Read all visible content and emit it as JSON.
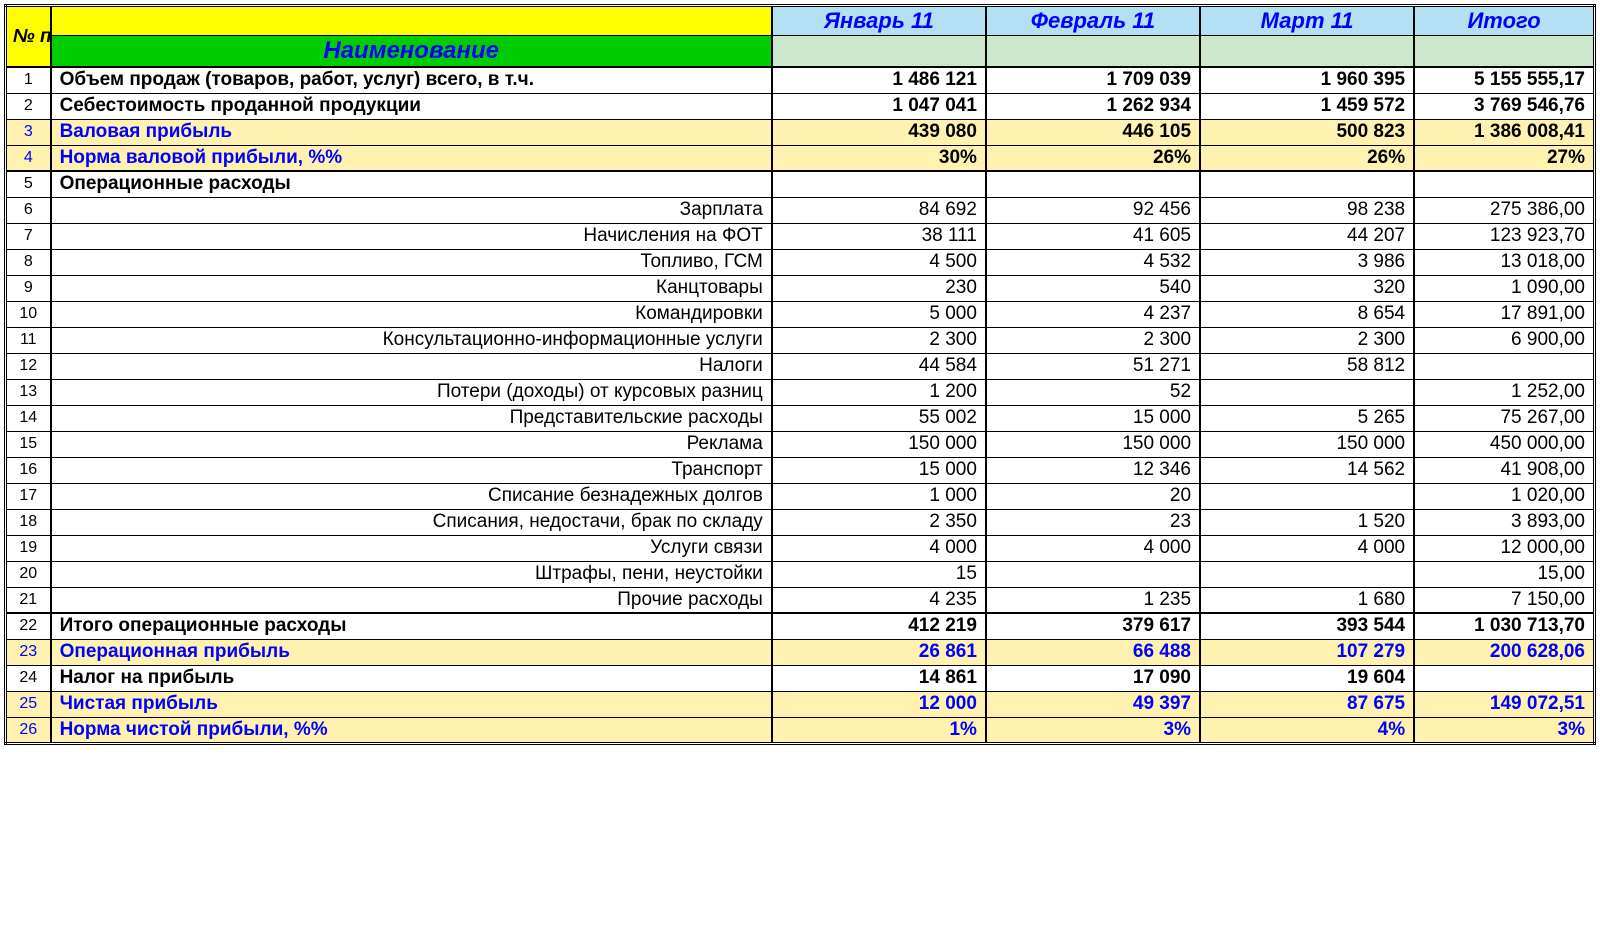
{
  "header": {
    "num_label": "№ п/п",
    "name_label": "Наименование",
    "months": [
      "Январь 11",
      "Февраль 11",
      "Март 11"
    ],
    "total_label": "Итого"
  },
  "colors": {
    "yellow_header": "#ffff00",
    "green_header": "#00cc00",
    "lightblue_header": "#b3e0f2",
    "lightgreen_sub": "#cce8cc",
    "highlight": "#fff2b0",
    "blue_text": "#0000ff"
  },
  "rows": [
    {
      "n": "1",
      "name": "Объем продаж (товаров, работ, услуг) всего,  в т.ч.",
      "align": "left",
      "bold": true,
      "v": [
        "1 486 121",
        "1 709 039",
        "1 960 395",
        "5 155 555,17"
      ],
      "thickTop": true
    },
    {
      "n": "2",
      "name": "Себестоимость проданной продукции",
      "align": "left",
      "bold": true,
      "v": [
        "1 047 041",
        "1 262 934",
        "1 459 572",
        "3 769 546,76"
      ]
    },
    {
      "n": "3",
      "name": "Валовая прибыль",
      "align": "left",
      "bold": true,
      "hl": true,
      "blue": true,
      "v": [
        "439 080",
        "446 105",
        "500 823",
        "1 386 008,41"
      ],
      "valBlack": true
    },
    {
      "n": "4",
      "name": "Норма валовой прибыли, %%",
      "align": "left",
      "bold": true,
      "hl": true,
      "blue": true,
      "v": [
        "30%",
        "26%",
        "26%",
        "27%"
      ],
      "valBlack": true
    },
    {
      "n": "5",
      "name": "Операционные расходы",
      "align": "left",
      "bold": true,
      "v": [
        "",
        "",
        "",
        ""
      ],
      "thickTop": true
    },
    {
      "n": "6",
      "name": "Зарплата",
      "align": "right",
      "v": [
        "84 692",
        "92 456",
        "98 238",
        "275 386,00"
      ]
    },
    {
      "n": "7",
      "name": "Начисления на ФОТ",
      "align": "right",
      "v": [
        "38 111",
        "41 605",
        "44 207",
        "123 923,70"
      ]
    },
    {
      "n": "8",
      "name": "Топливо, ГСМ",
      "align": "right",
      "v": [
        "4 500",
        "4 532",
        "3 986",
        "13 018,00"
      ]
    },
    {
      "n": "9",
      "name": "Канцтовары",
      "align": "right",
      "v": [
        "230",
        "540",
        "320",
        "1 090,00"
      ]
    },
    {
      "n": "10",
      "name": "Командировки",
      "align": "right",
      "v": [
        "5 000",
        "4 237",
        "8 654",
        "17 891,00"
      ]
    },
    {
      "n": "11",
      "name": "Консультационно-информационные услуги",
      "align": "right",
      "v": [
        "2 300",
        "2 300",
        "2 300",
        "6 900,00"
      ]
    },
    {
      "n": "12",
      "name": "Налоги",
      "align": "right",
      "v": [
        "44 584",
        "51 271",
        "58 812",
        ""
      ]
    },
    {
      "n": "13",
      "name": "Потери (доходы) от курсовых разниц",
      "align": "right",
      "v": [
        "1 200",
        "52",
        "",
        "1 252,00"
      ]
    },
    {
      "n": "14",
      "name": "Представительские расходы",
      "align": "right",
      "v": [
        "55 002",
        "15 000",
        "5 265",
        "75 267,00"
      ]
    },
    {
      "n": "15",
      "name": "Реклама",
      "align": "right",
      "v": [
        "150 000",
        "150 000",
        "150 000",
        "450 000,00"
      ]
    },
    {
      "n": "16",
      "name": "Транспорт",
      "align": "right",
      "v": [
        "15 000",
        "12 346",
        "14 562",
        "41 908,00"
      ]
    },
    {
      "n": "17",
      "name": "Списание безнадежных долгов",
      "align": "right",
      "v": [
        "1 000",
        "20",
        "",
        "1 020,00"
      ]
    },
    {
      "n": "18",
      "name": "Списания, недостачи, брак по складу",
      "align": "right",
      "v": [
        "2 350",
        "23",
        "1 520",
        "3 893,00"
      ]
    },
    {
      "n": "19",
      "name": "Услуги связи",
      "align": "right",
      "v": [
        "4 000",
        "4 000",
        "4 000",
        "12 000,00"
      ]
    },
    {
      "n": "20",
      "name": "Штрафы, пени, неустойки",
      "align": "right",
      "v": [
        "15",
        "",
        "",
        "15,00"
      ]
    },
    {
      "n": "21",
      "name": "Прочие расходы",
      "align": "right",
      "v": [
        "4 235",
        "1 235",
        "1 680",
        "7 150,00"
      ]
    },
    {
      "n": "22",
      "name": "Итого операционные расходы",
      "align": "left",
      "bold": true,
      "v": [
        "412 219",
        "379 617",
        "393 544",
        "1 030 713,70"
      ],
      "thickTop": true
    },
    {
      "n": "23",
      "name": "Операционная прибыль",
      "align": "left",
      "bold": true,
      "hl": true,
      "blue": true,
      "v": [
        "26 861",
        "66 488",
        "107 279",
        "200 628,06"
      ],
      "valBlue": true
    },
    {
      "n": "24",
      "name": "Налог на прибыль",
      "align": "left",
      "bold": true,
      "v": [
        "14 861",
        "17 090",
        "19 604",
        ""
      ]
    },
    {
      "n": "25",
      "name": "Чистая прибыль",
      "align": "left",
      "bold": true,
      "hl": true,
      "blue": true,
      "v": [
        "12 000",
        "49 397",
        "87 675",
        "149 072,51"
      ],
      "valBlue": true
    },
    {
      "n": "26",
      "name": "Норма чистой прибыли, %%",
      "align": "left",
      "bold": true,
      "hl": true,
      "blue": true,
      "v": [
        "1%",
        "3%",
        "4%",
        "3%"
      ],
      "valBlue": true
    }
  ]
}
